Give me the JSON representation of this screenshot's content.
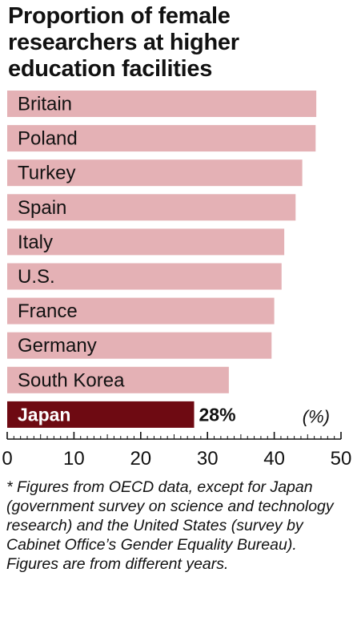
{
  "chart_data": {
    "type": "bar",
    "orientation": "horizontal",
    "title": "Proportion of female\nresearchers at higher\neducation facilities",
    "categories": [
      "Britain",
      "Poland",
      "Turkey",
      "Spain",
      "Italy",
      "U.S.",
      "France",
      "Germany",
      "South Korea",
      "Japan"
    ],
    "values": [
      46.3,
      46.2,
      44.2,
      43.2,
      41.5,
      41.1,
      40.0,
      39.6,
      33.2,
      28
    ],
    "highlight": "Japan",
    "data_labels": {
      "Japan": "28%"
    },
    "unit_label": "(%)",
    "xlim": [
      0,
      50
    ],
    "ticks": [
      "0",
      "10",
      "20",
      "30",
      "40",
      "50"
    ],
    "grid": false,
    "colors": {
      "bar": "#e4b1b5",
      "highlight": "#6e0a12",
      "label": "#111111",
      "highlight_label": "#ffffff"
    }
  },
  "footnote": "* Figures from OECD data, except for Japan (government survey on science and technology research) and the United States (survey by Cabinet Office’s Gender Equality Bureau). Figures are from different years."
}
